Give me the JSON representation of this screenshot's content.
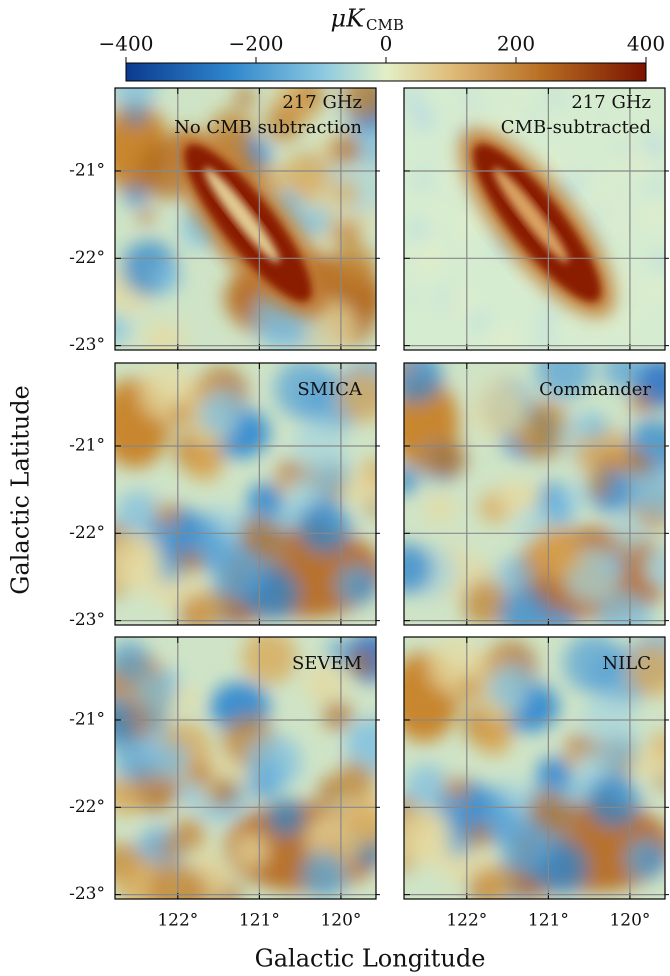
{
  "chart_data": {
    "type": "map-grid",
    "colorbar_label": "μK",
    "colorbar_label_sub": "CMB",
    "clim": [
      -400,
      400
    ],
    "cticks": [
      {
        "value": -400,
        "label": "−400"
      },
      {
        "value": -200,
        "label": "−200"
      },
      0,
      200,
      400
    ],
    "xlabel": "Galactic Longitude",
    "ylabel": "Galactic Latitude",
    "xlim": [
      122.77,
      119.57
    ],
    "ylim": [
      -23.05,
      -20.05
    ],
    "xticks": [
      {
        "value": 122,
        "label": "122°"
      },
      {
        "value": 121,
        "label": "121°"
      },
      {
        "value": 120,
        "label": "120°"
      }
    ],
    "yticks": [
      {
        "value": -21,
        "label": "-21°"
      },
      {
        "value": -22,
        "label": "-22°"
      },
      {
        "value": -23,
        "label": "-23°"
      }
    ],
    "grid": true,
    "panels": [
      {
        "labels": [
          "217 GHz",
          "No CMB subtraction"
        ]
      },
      {
        "labels": [
          "217 GHz",
          "CMB-subtracted"
        ]
      },
      {
        "labels": [
          "SMICA"
        ]
      },
      {
        "labels": [
          "Commander"
        ]
      },
      {
        "labels": [
          "SEVEM"
        ]
      },
      {
        "labels": [
          "NILC"
        ]
      }
    ]
  }
}
